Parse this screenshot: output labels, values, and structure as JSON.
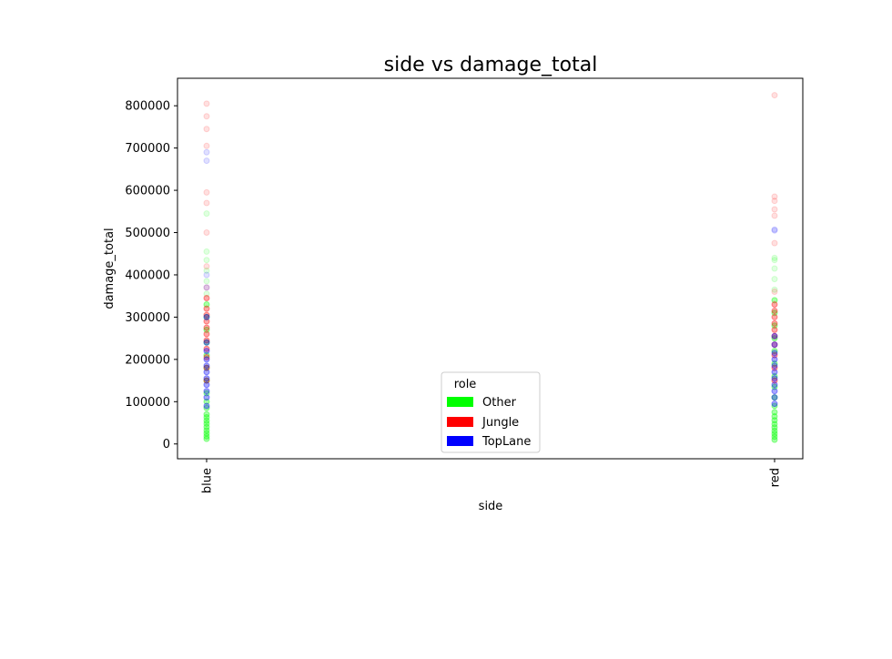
{
  "chart_data": {
    "type": "scatter",
    "title": "side vs damage_total",
    "xlabel": "side",
    "ylabel": "damage_total",
    "categories": [
      "blue",
      "red"
    ],
    "ylim": [
      -35000,
      865000
    ],
    "yticks": [
      0,
      100000,
      200000,
      300000,
      400000,
      500000,
      600000,
      700000,
      800000
    ],
    "ytick_labels": [
      "0",
      "100000",
      "200000",
      "300000",
      "400000",
      "500000",
      "600000",
      "700000",
      "800000"
    ],
    "grid": false,
    "legend": {
      "title": "role",
      "placement": "lower-center",
      "entries": [
        {
          "label": "Other",
          "color": "#00ff00"
        },
        {
          "label": "Jungle",
          "color": "#ff0000"
        },
        {
          "label": "TopLane",
          "color": "#0000ff"
        }
      ]
    },
    "series": [
      {
        "name": "Other",
        "color": "#00ff00",
        "points": [
          [
            "blue",
            12000
          ],
          [
            "blue",
            18000
          ],
          [
            "blue",
            25000
          ],
          [
            "blue",
            32000
          ],
          [
            "blue",
            40000
          ],
          [
            "blue",
            48000
          ],
          [
            "blue",
            55000
          ],
          [
            "blue",
            63000
          ],
          [
            "blue",
            70000
          ],
          [
            "blue",
            85000
          ],
          [
            "blue",
            100000
          ],
          [
            "blue",
            120000
          ],
          [
            "blue",
            150000
          ],
          [
            "blue",
            180000
          ],
          [
            "blue",
            210000
          ],
          [
            "blue",
            240000
          ],
          [
            "blue",
            270000
          ],
          [
            "blue",
            300000
          ],
          [
            "blue",
            330000
          ],
          [
            "blue",
            355000
          ],
          [
            "blue",
            385000
          ],
          [
            "blue",
            410000
          ],
          [
            "blue",
            435000
          ],
          [
            "blue",
            455000
          ],
          [
            "blue",
            545000
          ],
          [
            "red",
            10000
          ],
          [
            "red",
            17000
          ],
          [
            "red",
            24000
          ],
          [
            "red",
            31000
          ],
          [
            "red",
            39000
          ],
          [
            "red",
            47000
          ],
          [
            "red",
            56000
          ],
          [
            "red",
            65000
          ],
          [
            "red",
            75000
          ],
          [
            "red",
            90000
          ],
          [
            "red",
            110000
          ],
          [
            "red",
            135000
          ],
          [
            "red",
            160000
          ],
          [
            "red",
            190000
          ],
          [
            "red",
            220000
          ],
          [
            "red",
            250000
          ],
          [
            "red",
            280000
          ],
          [
            "red",
            310000
          ],
          [
            "red",
            340000
          ],
          [
            "red",
            365000
          ],
          [
            "red",
            390000
          ],
          [
            "red",
            415000
          ],
          [
            "red",
            440000
          ],
          [
            "red",
            435000
          ]
        ]
      },
      {
        "name": "Jungle",
        "color": "#ff0000",
        "points": [
          [
            "blue",
            150000
          ],
          [
            "blue",
            180000
          ],
          [
            "blue",
            205000
          ],
          [
            "blue",
            225000
          ],
          [
            "blue",
            245000
          ],
          [
            "blue",
            260000
          ],
          [
            "blue",
            275000
          ],
          [
            "blue",
            290000
          ],
          [
            "blue",
            305000
          ],
          [
            "blue",
            320000
          ],
          [
            "blue",
            345000
          ],
          [
            "blue",
            370000
          ],
          [
            "blue",
            420000
          ],
          [
            "blue",
            500000
          ],
          [
            "blue",
            570000
          ],
          [
            "blue",
            595000
          ],
          [
            "blue",
            705000
          ],
          [
            "blue",
            745000
          ],
          [
            "blue",
            775000
          ],
          [
            "blue",
            805000
          ],
          [
            "red",
            150000
          ],
          [
            "red",
            180000
          ],
          [
            "red",
            210000
          ],
          [
            "red",
            235000
          ],
          [
            "red",
            255000
          ],
          [
            "red",
            270000
          ],
          [
            "red",
            285000
          ],
          [
            "red",
            300000
          ],
          [
            "red",
            315000
          ],
          [
            "red",
            330000
          ],
          [
            "red",
            360000
          ],
          [
            "red",
            475000
          ],
          [
            "red",
            540000
          ],
          [
            "red",
            555000
          ],
          [
            "red",
            575000
          ],
          [
            "red",
            585000
          ],
          [
            "red",
            825000
          ]
        ]
      },
      {
        "name": "TopLane",
        "color": "#0000ff",
        "points": [
          [
            "blue",
            90000
          ],
          [
            "blue",
            110000
          ],
          [
            "blue",
            125000
          ],
          [
            "blue",
            140000
          ],
          [
            "blue",
            155000
          ],
          [
            "blue",
            170000
          ],
          [
            "blue",
            185000
          ],
          [
            "blue",
            200000
          ],
          [
            "blue",
            220000
          ],
          [
            "blue",
            240000
          ],
          [
            "blue",
            300000
          ],
          [
            "blue",
            370000
          ],
          [
            "blue",
            400000
          ],
          [
            "blue",
            670000
          ],
          [
            "blue",
            690000
          ],
          [
            "red",
            95000
          ],
          [
            "red",
            110000
          ],
          [
            "red",
            125000
          ],
          [
            "red",
            140000
          ],
          [
            "red",
            155000
          ],
          [
            "red",
            170000
          ],
          [
            "red",
            185000
          ],
          [
            "red",
            200000
          ],
          [
            "red",
            215000
          ],
          [
            "red",
            235000
          ],
          [
            "red",
            255000
          ],
          [
            "red",
            505000
          ],
          [
            "red",
            507000
          ]
        ]
      }
    ]
  }
}
